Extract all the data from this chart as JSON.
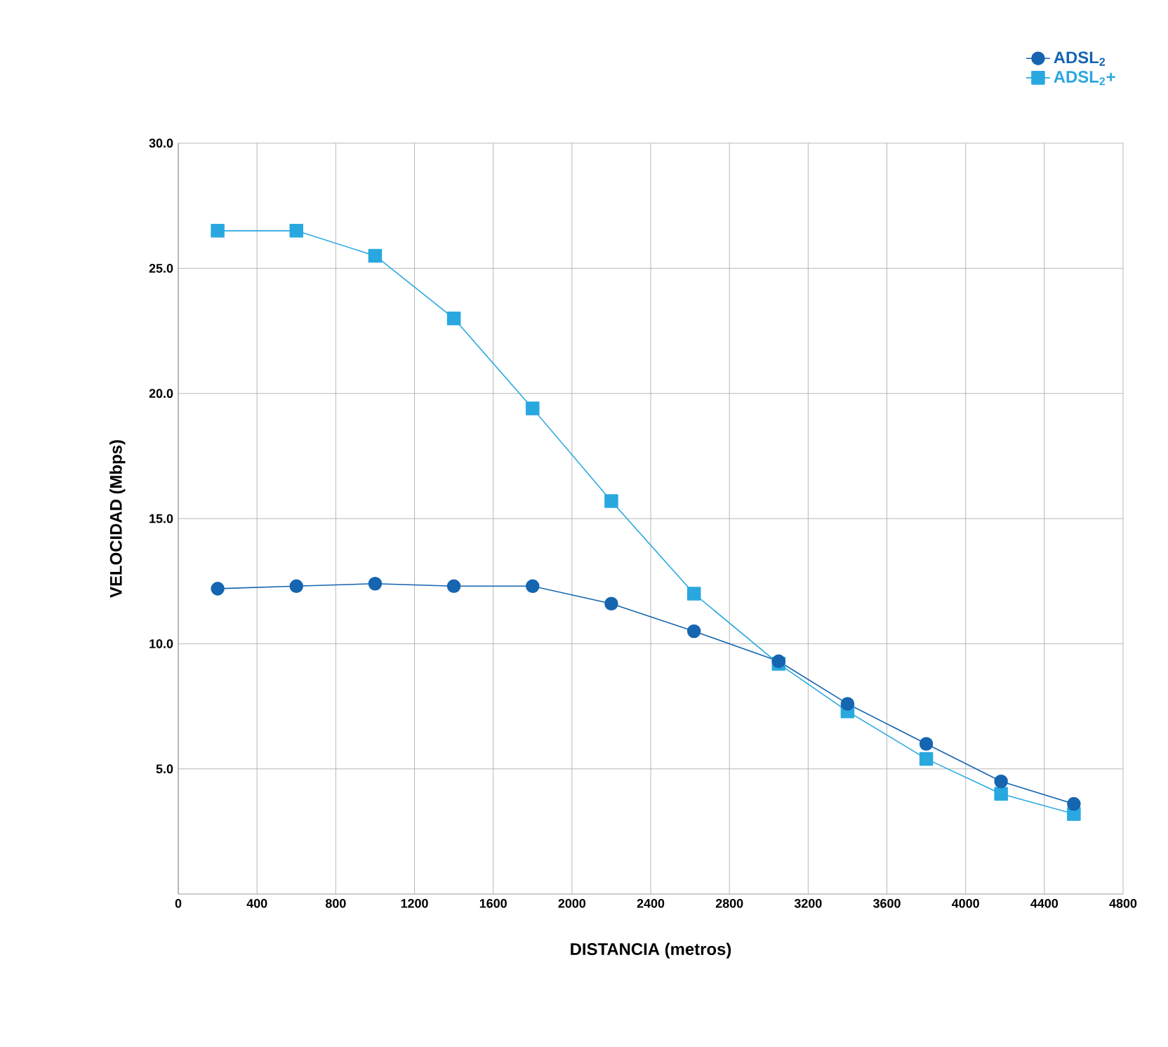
{
  "chart_data": {
    "type": "line",
    "xlabel": "DISTANCIA (metros)",
    "ylabel": "VELOCIDAD (Mbps)",
    "x": [
      200,
      600,
      1000,
      1400,
      1800,
      2200,
      2620,
      3050,
      3400,
      3800,
      4180,
      4550
    ],
    "series": [
      {
        "name": "ADSL$_{2}$",
        "color": "#1565b0",
        "marker": "circle",
        "values": [
          12.2,
          12.3,
          12.4,
          12.3,
          12.3,
          11.6,
          10.5,
          9.3,
          7.6,
          6.0,
          4.5,
          3.6
        ]
      },
      {
        "name": "ADSL$_{2}$+",
        "color": "#29a8e0",
        "marker": "square",
        "values": [
          26.5,
          26.5,
          25.5,
          23.0,
          19.4,
          15.7,
          12.0,
          9.2,
          7.3,
          5.4,
          4.0,
          3.2
        ]
      }
    ],
    "xlim": [
      0,
      4800
    ],
    "xticks": [
      0,
      400,
      800,
      1200,
      1600,
      2000,
      2400,
      2800,
      3200,
      3600,
      4000,
      4400,
      4800
    ],
    "ylim": [
      0,
      30
    ],
    "yticks": [
      {
        "value": 5,
        "label": "5.0"
      },
      {
        "value": 10,
        "label": "10.0"
      },
      {
        "value": 15,
        "label": "15.0"
      },
      {
        "value": 20,
        "label": "20.0"
      },
      {
        "value": 25,
        "label": "25.0"
      },
      {
        "value": 30,
        "label": "30.0"
      }
    ],
    "grid": true,
    "legend": "top right"
  }
}
